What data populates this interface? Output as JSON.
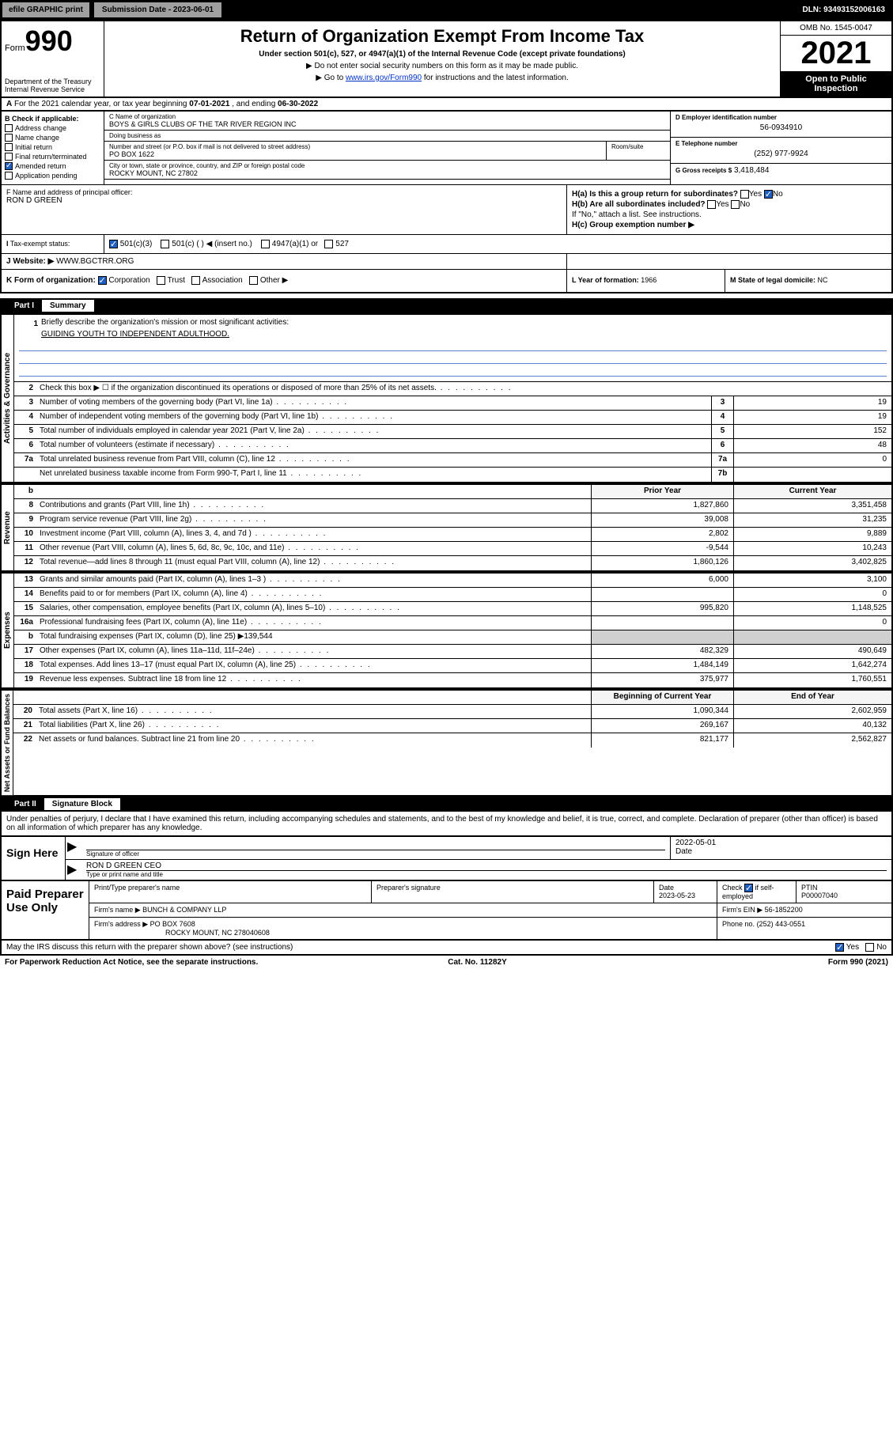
{
  "top": {
    "efile": "efile GRAPHIC print",
    "submission": "Submission Date - 2023-06-01",
    "dln": "DLN: 93493152006163"
  },
  "header": {
    "form_prefix": "Form",
    "form_number": "990",
    "title": "Return of Organization Exempt From Income Tax",
    "subtitle": "Under section 501(c), 527, or 4947(a)(1) of the Internal Revenue Code (except private foundations)",
    "note1": "▶ Do not enter social security numbers on this form as it may be made public.",
    "note2_pre": "▶ Go to ",
    "note2_link": "www.irs.gov/Form990",
    "note2_post": " for instructions and the latest information.",
    "dept": "Department of the Treasury\nInternal Revenue Service",
    "omb": "OMB No. 1545-0047",
    "year": "2021",
    "inspection": "Open to Public Inspection"
  },
  "section_a": {
    "label": "A",
    "text_pre": "For the 2021 calendar year, or tax year beginning ",
    "begin": "07-01-2021",
    "text_mid": " , and ending ",
    "end": "06-30-2022"
  },
  "col_b": {
    "header": "B Check if applicable:",
    "items": [
      "Address change",
      "Name change",
      "Initial return",
      "Final return/terminated",
      "Amended return",
      "Application pending"
    ],
    "checked_index": 4
  },
  "col_c": {
    "name_label": "C Name of organization",
    "name": "BOYS & GIRLS CLUBS OF THE TAR RIVER REGION INC",
    "dba_label": "Doing business as",
    "dba": "",
    "addr_label": "Number and street (or P.O. box if mail is not delivered to street address)",
    "addr": "PO BOX 1622",
    "room_label": "Room/suite",
    "city_label": "City or town, state or province, country, and ZIP or foreign postal code",
    "city": "ROCKY MOUNT, NC  27802"
  },
  "col_d": {
    "ein_label": "D Employer identification number",
    "ein": "56-0934910",
    "phone_label": "E Telephone number",
    "phone": "(252) 977-9924",
    "gross_label": "G Gross receipts $",
    "gross": "3,418,484"
  },
  "officer": {
    "label": "F Name and address of principal officer:",
    "name": "RON D GREEN",
    "ha_label": "H(a)  Is this a group return for subordinates?",
    "ha_yes": "Yes",
    "ha_no": "No",
    "hb_label": "H(b)  Are all subordinates included?",
    "hb_note": "If \"No,\" attach a list. See instructions.",
    "hc_label": "H(c)  Group exemption number ▶"
  },
  "tax_status": {
    "label": "Tax-exempt status:",
    "opt1": "501(c)(3)",
    "opt2": "501(c) (  ) ◀ (insert no.)",
    "opt3": "4947(a)(1) or",
    "opt4": "527"
  },
  "website": {
    "label": "J   Website: ▶",
    "value": "WWW.BGCTRR.ORG"
  },
  "form_org": {
    "label": "K Form of organization:",
    "opts": [
      "Corporation",
      "Trust",
      "Association",
      "Other ▶"
    ],
    "year_label": "L Year of formation:",
    "year": "1966",
    "state_label": "M State of legal domicile:",
    "state": "NC"
  },
  "part1": {
    "num": "Part I",
    "title": "Summary"
  },
  "mission": {
    "num": "1",
    "label": "Briefly describe the organization's mission or most significant activities:",
    "text": "GUIDING YOUTH TO INDEPENDENT ADULTHOOD."
  },
  "governance": {
    "side": "Activities & Governance",
    "rows": [
      {
        "n": "2",
        "t": "Check this box ▶ ☐  if the organization discontinued its operations or disposed of more than 25% of its net assets."
      },
      {
        "n": "3",
        "t": "Number of voting members of the governing body (Part VI, line 1a)",
        "box": "3",
        "v": "19"
      },
      {
        "n": "4",
        "t": "Number of independent voting members of the governing body (Part VI, line 1b)",
        "box": "4",
        "v": "19"
      },
      {
        "n": "5",
        "t": "Total number of individuals employed in calendar year 2021 (Part V, line 2a)",
        "box": "5",
        "v": "152"
      },
      {
        "n": "6",
        "t": "Total number of volunteers (estimate if necessary)",
        "box": "6",
        "v": "48"
      },
      {
        "n": "7a",
        "t": "Total unrelated business revenue from Part VIII, column (C), line 12",
        "box": "7a",
        "v": "0"
      },
      {
        "n": "",
        "t": "Net unrelated business taxable income from Form 990-T, Part I, line 11",
        "box": "7b",
        "v": ""
      }
    ]
  },
  "two_col_header": {
    "prior": "Prior Year",
    "current": "Current Year"
  },
  "revenue": {
    "side": "Revenue",
    "rows": [
      {
        "n": "8",
        "t": "Contributions and grants (Part VIII, line 1h)",
        "p": "1,827,860",
        "c": "3,351,458"
      },
      {
        "n": "9",
        "t": "Program service revenue (Part VIII, line 2g)",
        "p": "39,008",
        "c": "31,235"
      },
      {
        "n": "10",
        "t": "Investment income (Part VIII, column (A), lines 3, 4, and 7d )",
        "p": "2,802",
        "c": "9,889"
      },
      {
        "n": "11",
        "t": "Other revenue (Part VIII, column (A), lines 5, 6d, 8c, 9c, 10c, and 11e)",
        "p": "-9,544",
        "c": "10,243"
      },
      {
        "n": "12",
        "t": "Total revenue—add lines 8 through 11 (must equal Part VIII, column (A), line 12)",
        "p": "1,860,126",
        "c": "3,402,825"
      }
    ]
  },
  "expenses": {
    "side": "Expenses",
    "rows": [
      {
        "n": "13",
        "t": "Grants and similar amounts paid (Part IX, column (A), lines 1–3 )",
        "p": "6,000",
        "c": "3,100"
      },
      {
        "n": "14",
        "t": "Benefits paid to or for members (Part IX, column (A), line 4)",
        "p": "",
        "c": "0"
      },
      {
        "n": "15",
        "t": "Salaries, other compensation, employee benefits (Part IX, column (A), lines 5–10)",
        "p": "995,820",
        "c": "1,148,525"
      },
      {
        "n": "16a",
        "t": "Professional fundraising fees (Part IX, column (A), line 11e)",
        "p": "",
        "c": "0"
      },
      {
        "n": "b",
        "t": "Total fundraising expenses (Part IX, column (D), line 25) ▶139,544",
        "shaded": true
      },
      {
        "n": "17",
        "t": "Other expenses (Part IX, column (A), lines 11a–11d, 11f–24e)",
        "p": "482,329",
        "c": "490,649"
      },
      {
        "n": "18",
        "t": "Total expenses. Add lines 13–17 (must equal Part IX, column (A), line 25)",
        "p": "1,484,149",
        "c": "1,642,274"
      },
      {
        "n": "19",
        "t": "Revenue less expenses. Subtract line 18 from line 12",
        "p": "375,977",
        "c": "1,760,551"
      }
    ]
  },
  "netassets": {
    "side": "Net Assets or Fund Balances",
    "header": {
      "prior": "Beginning of Current Year",
      "current": "End of Year"
    },
    "rows": [
      {
        "n": "20",
        "t": "Total assets (Part X, line 16)",
        "p": "1,090,344",
        "c": "2,602,959"
      },
      {
        "n": "21",
        "t": "Total liabilities (Part X, line 26)",
        "p": "269,167",
        "c": "40,132"
      },
      {
        "n": "22",
        "t": "Net assets or fund balances. Subtract line 21 from line 20",
        "p": "821,177",
        "c": "2,562,827"
      }
    ]
  },
  "part2": {
    "num": "Part II",
    "title": "Signature Block"
  },
  "sig_intro": "Under penalties of perjury, I declare that I have examined this return, including accompanying schedules and statements, and to the best of my knowledge and belief, it is true, correct, and complete. Declaration of preparer (other than officer) is based on all information of which preparer has any knowledge.",
  "sign": {
    "label": "Sign Here",
    "sig_label": "Signature of officer",
    "date": "2022-05-01",
    "date_label": "Date",
    "name": "RON D GREEN  CEO",
    "name_label": "Type or print name and title"
  },
  "preparer": {
    "label": "Paid Preparer Use Only",
    "h1": "Print/Type preparer's name",
    "h2": "Preparer's signature",
    "h3": "Date",
    "date": "2023-05-23",
    "h4_pre": "Check",
    "h4_post": "if self-employed",
    "h5": "PTIN",
    "ptin": "P00007040",
    "firm_name_label": "Firm's name    ▶",
    "firm_name": "BUNCH & COMPANY LLP",
    "firm_ein_label": "Firm's EIN ▶",
    "firm_ein": "56-1852200",
    "firm_addr_label": "Firm's address ▶",
    "firm_addr1": "PO BOX 7608",
    "firm_addr2": "ROCKY MOUNT, NC  278040608",
    "phone_label": "Phone no.",
    "phone": "(252) 443-0551"
  },
  "footer": {
    "discuss": "May the IRS discuss this return with the preparer shown above? (see instructions)",
    "yes": "Yes",
    "no": "No",
    "paperwork": "For Paperwork Reduction Act Notice, see the separate instructions.",
    "cat": "Cat. No. 11282Y",
    "form": "Form 990 (2021)"
  }
}
